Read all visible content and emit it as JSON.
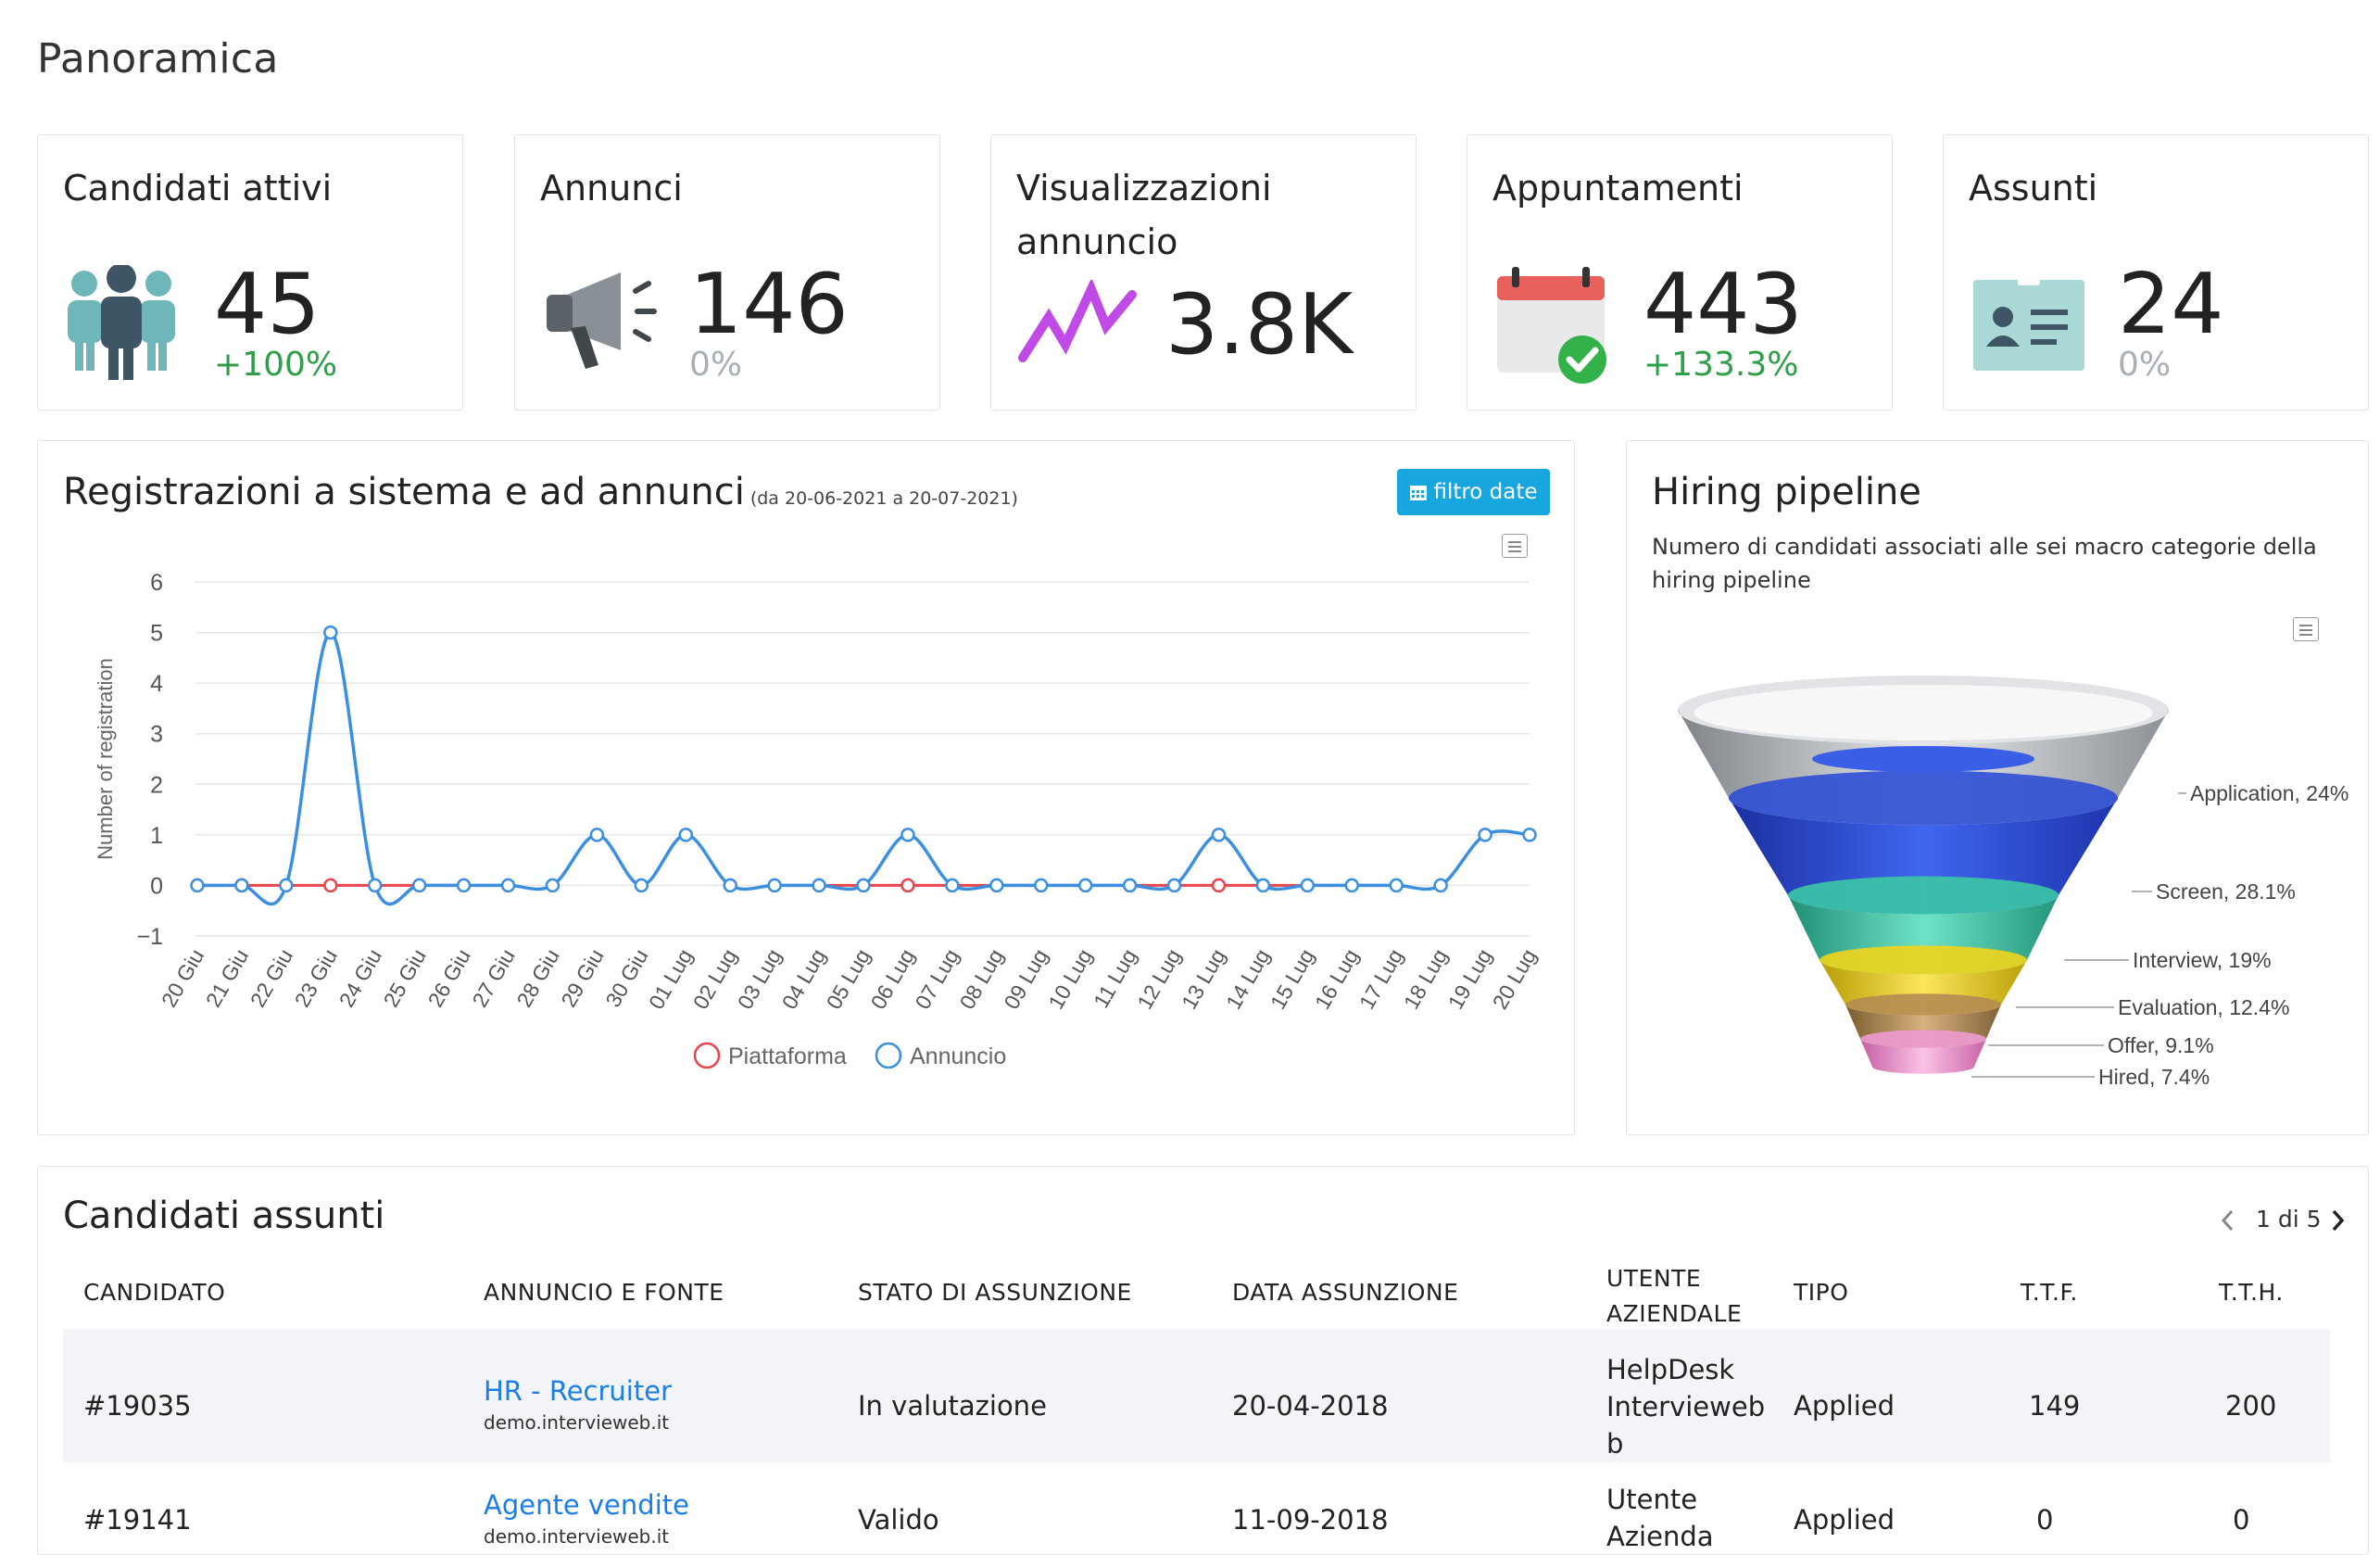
{
  "page_title": "Panoramica",
  "kpis": [
    {
      "title": "Candidati attivi",
      "value": "45",
      "delta": "+100%",
      "delta_color": "#2e9e48",
      "icon": "people-icon"
    },
    {
      "title": "Annunci",
      "value": "146",
      "delta": "0%",
      "delta_color": "#a9afb6",
      "icon": "megaphone-icon"
    },
    {
      "title": "Visualizzazioni annuncio",
      "value": "3.8K",
      "delta": "",
      "delta_color": "#a9afb6",
      "icon": "trend-line-icon"
    },
    {
      "title": "Appuntamenti",
      "value": "443",
      "delta": "+133.3%",
      "delta_color": "#2e9e48",
      "icon": "calendar-check-icon"
    },
    {
      "title": "Assunti",
      "value": "24",
      "delta": "0%",
      "delta_color": "#a9afb6",
      "icon": "id-card-icon"
    }
  ],
  "registrations": {
    "title": "Registrazioni a sistema e ad annunci",
    "range": "(da 20-06-2021 a 20-07-2021)",
    "filter_button": "filtro date",
    "legend": [
      "Piattaforma",
      "Annuncio"
    ]
  },
  "chart_data": [
    {
      "type": "line",
      "ylabel": "Number of registration",
      "ylim": [
        -1,
        6
      ],
      "yticks": [
        "6",
        "5",
        "4",
        "3",
        "2",
        "1",
        "0",
        "−1"
      ],
      "categories": [
        "20 Giu",
        "21 Giu",
        "22 Giu",
        "23 Giu",
        "24 Giu",
        "25 Giu",
        "26 Giu",
        "27 Giu",
        "28 Giu",
        "29 Giu",
        "30 Giu",
        "01 Lug",
        "02 Lug",
        "03 Lug",
        "04 Lug",
        "05 Lug",
        "06 Lug",
        "07 Lug",
        "08 Lug",
        "09 Lug",
        "10 Lug",
        "11 Lug",
        "12 Lug",
        "13 Lug",
        "14 Lug",
        "15 Lug",
        "16 Lug",
        "17 Lug",
        "18 Lug",
        "19 Lug",
        "20 Lug"
      ],
      "series": [
        {
          "name": "Piattaforma",
          "color": "#e8454f",
          "values": [
            0,
            0,
            0,
            0,
            0,
            0,
            0,
            0,
            0,
            0,
            0,
            0,
            0,
            0,
            0,
            0,
            0,
            0,
            0,
            0,
            0,
            0,
            0,
            0,
            0,
            0,
            0,
            0,
            0,
            0,
            0
          ]
        },
        {
          "name": "Annuncio",
          "color": "#3b8fe0",
          "values": [
            0,
            0,
            0,
            5,
            0,
            0,
            0,
            0,
            0,
            1,
            0,
            1,
            0,
            0,
            0,
            0,
            1,
            0,
            0,
            0,
            0,
            0,
            0,
            1,
            0,
            0,
            0,
            0,
            0,
            1,
            1
          ]
        }
      ]
    },
    {
      "type": "funnel",
      "title": "Hiring pipeline",
      "categories": [
        "Application",
        "Screen",
        "Interview",
        "Evaluation",
        "Offer",
        "Hired"
      ],
      "values": [
        24,
        28.1,
        19,
        12.4,
        9.1,
        7.4
      ],
      "labels": [
        "Application, 24%",
        "Screen, 28.1%",
        "Interview, 19%",
        "Evaluation, 12.4%",
        "Offer, 9.1%",
        "Hired, 7.4%"
      ],
      "colors": [
        "#c9ccd1",
        "#2f4fd6",
        "#3cc7a5",
        "#f1d41c",
        "#b58c52",
        "#ee9ad0"
      ]
    }
  ],
  "hiring": {
    "title": "Hiring pipeline",
    "description": "Numero di candidati associati alle sei macro categorie della hiring pipeline"
  },
  "hired_table": {
    "title": "Candidati assunti",
    "pager": "1 di 5",
    "headers": [
      "CANDIDATO",
      "ANNUNCIO E FONTE",
      "STATO DI ASSUNZIONE",
      "DATA ASSUNZIONE",
      "UTENTE",
      "AZIENDALE",
      "TIPO",
      "T.T.F.",
      "T.T.H."
    ],
    "rows": [
      {
        "candidate": "#19035",
        "ad": "HR - Recruiter",
        "source": "demo.intervieweb.it",
        "status": "In valutazione",
        "date": "20-04-2018",
        "user1": "HelpDesk",
        "user2": "Intervieweb",
        "user3": "b",
        "type": "Applied",
        "ttf": "149",
        "tth": "200"
      },
      {
        "candidate": "#19141",
        "ad": "Agente vendite",
        "source": "demo.intervieweb.it",
        "status": "Valido",
        "date": "11-09-2018",
        "user1": "Utente",
        "user2": "Azienda",
        "user3": "",
        "type": "Applied",
        "ttf": "0",
        "tth": "0"
      }
    ]
  }
}
